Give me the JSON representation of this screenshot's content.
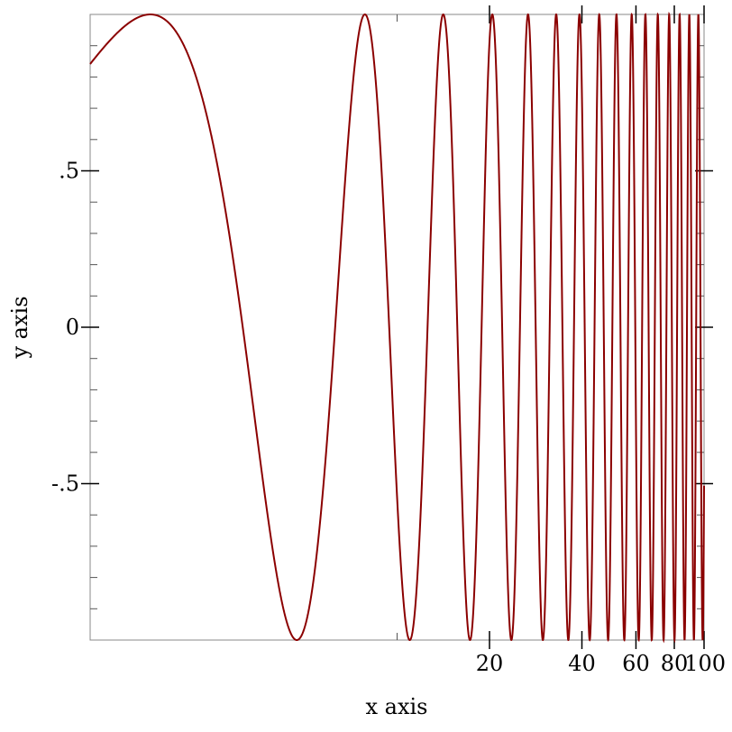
{
  "chart_data": {
    "type": "line",
    "xlabel": "x axis",
    "ylabel": "y axis",
    "x_scale": "log",
    "xlim": [
      1,
      100
    ],
    "ylim": [
      -1,
      1
    ],
    "x_ticks": [
      {
        "value": 20,
        "label": "20"
      },
      {
        "value": 40,
        "label": "40"
      },
      {
        "value": 60,
        "label": "60"
      },
      {
        "value": 80,
        "label": "80"
      },
      {
        "value": 100,
        "label": "100"
      }
    ],
    "x_minor_ticks": [
      10
    ],
    "y_ticks": [
      {
        "value": 0.5,
        "label": ".5"
      },
      {
        "value": 0,
        "label": "0"
      },
      {
        "value": -0.5,
        "label": "-.5"
      }
    ],
    "y_minor_step": 0.1,
    "grid": false,
    "series": [
      {
        "function": "sin(x)",
        "x_range": [
          1,
          100
        ],
        "color": "#8b0000"
      }
    ]
  }
}
